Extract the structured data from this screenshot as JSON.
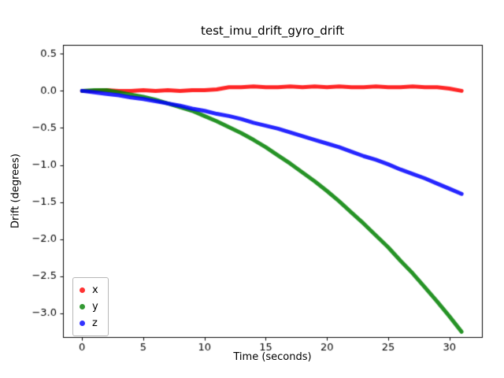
{
  "title": "test_imu_drift_gyro_drift",
  "xlabel": "Time (seconds)",
  "ylabel": "Drift (degrees)",
  "legend": {
    "items": [
      {
        "label": "x",
        "color": "#ff0000"
      },
      {
        "label": "y",
        "color": "#008000"
      },
      {
        "label": "z",
        "color": "#0000ff"
      }
    ],
    "position": "lower left"
  },
  "colors": {
    "background": "#ffffff",
    "axes": "#000000",
    "series_x": "#ff0000",
    "series_y": "#008000",
    "series_z": "#0000ff"
  },
  "chart_data": {
    "type": "scatter",
    "title": "test_imu_drift_gyro_drift",
    "xlabel": "Time (seconds)",
    "ylabel": "Drift (degrees)",
    "xlim": [
      -1.56,
      32.66
    ],
    "ylim": [
      -3.32,
      0.62
    ],
    "grid": false,
    "legend_position": "lower left",
    "xtick_values": [
      0,
      5,
      10,
      15,
      20,
      25,
      30
    ],
    "xtick_labels": [
      "0",
      "5",
      "10",
      "15",
      "20",
      "25",
      "30"
    ],
    "ytick_values": [
      0.5,
      0.0,
      -0.5,
      -1.0,
      -1.5,
      -2.0,
      -2.5,
      -3.0
    ],
    "ytick_labels": [
      "0.5",
      "0.0",
      "−0.5",
      "−1.0",
      "−1.5",
      "−2.0",
      "−2.5",
      "−3.0"
    ],
    "x": [
      0,
      1,
      2,
      3,
      4,
      5,
      6,
      7,
      8,
      9,
      10,
      11,
      12,
      13,
      14,
      15,
      16,
      17,
      18,
      19,
      20,
      21,
      22,
      23,
      24,
      25,
      26,
      27,
      28,
      29,
      30,
      31
    ],
    "series": [
      {
        "name": "x",
        "color": "#ff0000",
        "values": [
          0.0,
          0.0,
          0.01,
          0.0,
          0.0,
          0.01,
          0.0,
          0.01,
          0.0,
          0.01,
          0.01,
          0.02,
          0.05,
          0.05,
          0.06,
          0.05,
          0.05,
          0.06,
          0.05,
          0.06,
          0.05,
          0.06,
          0.05,
          0.05,
          0.06,
          0.05,
          0.05,
          0.06,
          0.05,
          0.05,
          0.03,
          0.0
        ]
      },
      {
        "name": "y",
        "color": "#008000",
        "values": [
          0.0,
          0.01,
          0.01,
          -0.02,
          -0.05,
          -0.08,
          -0.12,
          -0.17,
          -0.22,
          -0.27,
          -0.34,
          -0.41,
          -0.49,
          -0.57,
          -0.66,
          -0.76,
          -0.87,
          -0.98,
          -1.1,
          -1.22,
          -1.35,
          -1.49,
          -1.64,
          -1.79,
          -1.95,
          -2.11,
          -2.29,
          -2.46,
          -2.65,
          -2.84,
          -3.04,
          -3.25
        ]
      },
      {
        "name": "z",
        "color": "#0000ff",
        "values": [
          0.0,
          -0.02,
          -0.04,
          -0.06,
          -0.09,
          -0.11,
          -0.14,
          -0.17,
          -0.2,
          -0.24,
          -0.27,
          -0.31,
          -0.34,
          -0.38,
          -0.43,
          -0.47,
          -0.51,
          -0.56,
          -0.61,
          -0.66,
          -0.71,
          -0.76,
          -0.82,
          -0.88,
          -0.93,
          -0.99,
          -1.06,
          -1.12,
          -1.18,
          -1.25,
          -1.32,
          -1.39
        ]
      }
    ]
  }
}
